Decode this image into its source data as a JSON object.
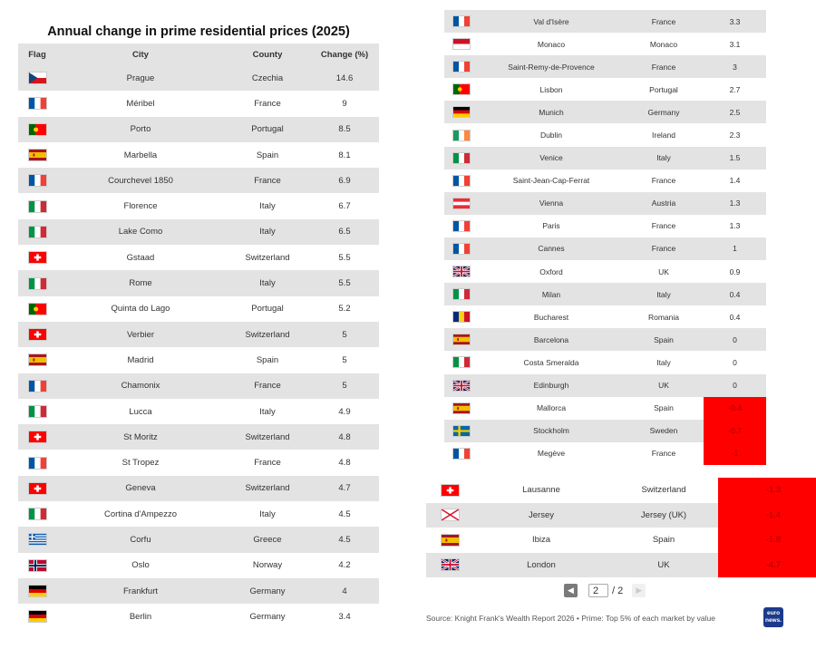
{
  "chart_data": {
    "type": "table",
    "title": "Annual change in prime residential prices (2025)",
    "columns": [
      "Flag",
      "City",
      "County",
      "Change (%)"
    ],
    "rows": [
      {
        "flag": "cz",
        "city": "Prague",
        "country": "Czechia",
        "change": "14.6"
      },
      {
        "flag": "fr",
        "city": "Méribel",
        "country": "France",
        "change": "9"
      },
      {
        "flag": "pt",
        "city": "Porto",
        "country": "Portugal",
        "change": "8.5"
      },
      {
        "flag": "es",
        "city": "Marbella",
        "country": "Spain",
        "change": "8.1"
      },
      {
        "flag": "fr",
        "city": "Courchevel 1850",
        "country": "France",
        "change": "6.9"
      },
      {
        "flag": "it",
        "city": "Florence",
        "country": "Italy",
        "change": "6.7"
      },
      {
        "flag": "it",
        "city": "Lake Como",
        "country": "Italy",
        "change": "6.5"
      },
      {
        "flag": "ch",
        "city": "Gstaad",
        "country": "Switzerland",
        "change": "5.5"
      },
      {
        "flag": "it",
        "city": "Rome",
        "country": "Italy",
        "change": "5.5"
      },
      {
        "flag": "pt",
        "city": "Quinta do Lago",
        "country": "Portugal",
        "change": "5.2"
      },
      {
        "flag": "ch",
        "city": "Verbier",
        "country": "Switzerland",
        "change": "5"
      },
      {
        "flag": "es",
        "city": "Madrid",
        "country": "Spain",
        "change": "5"
      },
      {
        "flag": "fr",
        "city": "Chamonix",
        "country": "France",
        "change": "5"
      },
      {
        "flag": "it",
        "city": "Lucca",
        "country": "Italy",
        "change": "4.9"
      },
      {
        "flag": "ch",
        "city": "St Moritz",
        "country": "Switzerland",
        "change": "4.8"
      },
      {
        "flag": "fr",
        "city": "St Tropez",
        "country": "France",
        "change": "4.8"
      },
      {
        "flag": "ch",
        "city": "Geneva",
        "country": "Switzerland",
        "change": "4.7"
      },
      {
        "flag": "it",
        "city": "Cortina d'Ampezzo",
        "country": "Italy",
        "change": "4.5"
      },
      {
        "flag": "gr",
        "city": "Corfu",
        "country": "Greece",
        "change": "4.5"
      },
      {
        "flag": "no",
        "city": "Oslo",
        "country": "Norway",
        "change": "4.2"
      },
      {
        "flag": "de",
        "city": "Frankfurt",
        "country": "Germany",
        "change": "4"
      },
      {
        "flag": "de",
        "city": "Berlin",
        "country": "Germany",
        "change": "3.4"
      },
      {
        "flag": "fr",
        "city": "Val d'Isère",
        "country": "France",
        "change": "3.3"
      },
      {
        "flag": "mc",
        "city": "Monaco",
        "country": "Monaco",
        "change": "3.1"
      },
      {
        "flag": "fr",
        "city": "Saint-Remy-de-Provence",
        "country": "France",
        "change": "3"
      },
      {
        "flag": "pt",
        "city": "Lisbon",
        "country": "Portugal",
        "change": "2.7"
      },
      {
        "flag": "de",
        "city": "Munich",
        "country": "Germany",
        "change": "2.5"
      },
      {
        "flag": "ie",
        "city": "Dublin",
        "country": "Ireland",
        "change": "2.3"
      },
      {
        "flag": "it",
        "city": "Venice",
        "country": "Italy",
        "change": "1.5"
      },
      {
        "flag": "fr",
        "city": "Saint-Jean-Cap-Ferrat",
        "country": "France",
        "change": "1.4"
      },
      {
        "flag": "at",
        "city": "Vienna",
        "country": "Austria",
        "change": "1.3"
      },
      {
        "flag": "fr",
        "city": "Paris",
        "country": "France",
        "change": "1.3"
      },
      {
        "flag": "fr",
        "city": "Cannes",
        "country": "France",
        "change": "1"
      },
      {
        "flag": "gb",
        "city": "Oxford",
        "country": "UK",
        "change": "0.9"
      },
      {
        "flag": "it",
        "city": "Milan",
        "country": "Italy",
        "change": "0.4"
      },
      {
        "flag": "ro",
        "city": "Bucharest",
        "country": "Romania",
        "change": "0.4"
      },
      {
        "flag": "es",
        "city": "Barcelona",
        "country": "Spain",
        "change": "0"
      },
      {
        "flag": "it",
        "city": "Costa Smeralda",
        "country": "Italy",
        "change": "0"
      },
      {
        "flag": "gb",
        "city": "Edinburgh",
        "country": "UK",
        "change": "0"
      },
      {
        "flag": "es",
        "city": "Mallorca",
        "country": "Spain",
        "change": "-0.4"
      },
      {
        "flag": "se",
        "city": "Stockholm",
        "country": "Sweden",
        "change": "-0.7"
      },
      {
        "flag": "fr",
        "city": "Megève",
        "country": "France",
        "change": "-1"
      },
      {
        "flag": "ch",
        "city": "Lausanne",
        "country": "Switzerland",
        "change": "-1.3"
      },
      {
        "flag": "je",
        "city": "Jersey",
        "country": "Jersey (UK)",
        "change": "-1.4"
      },
      {
        "flag": "es",
        "city": "Ibiza",
        "country": "Spain",
        "change": "-1.8"
      },
      {
        "flag": "gb",
        "city": "London",
        "country": "UK",
        "change": "-4.7"
      }
    ],
    "negative_highlight_color": "#ff0000"
  },
  "pagination": {
    "current": "2",
    "total": "/ 2"
  },
  "source": "Source: Knight Frank's Wealth Report 2026 • Prime: Top 5% of each market by value",
  "logo_text": "euro news."
}
